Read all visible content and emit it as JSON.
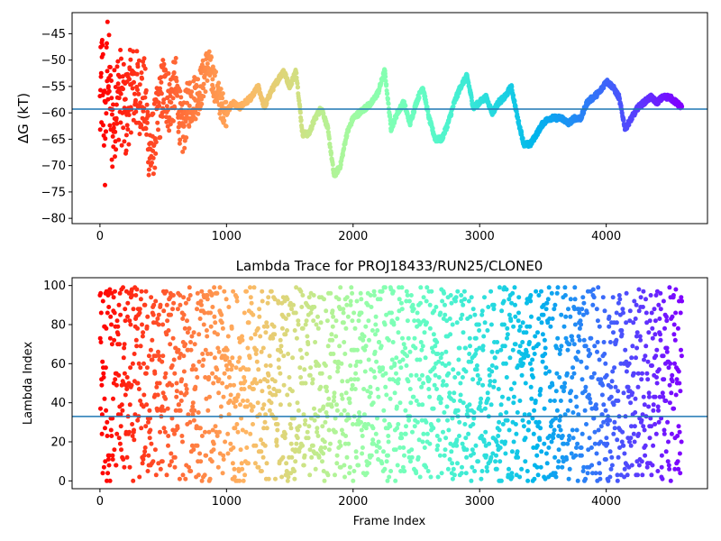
{
  "chart_data": [
    {
      "type": "scatter",
      "title": "",
      "xlabel": "",
      "ylabel": "ΔG (kT)",
      "xlim": [
        -220,
        4800
      ],
      "ylim": [
        -81,
        -41
      ],
      "xticks": [
        0,
        1000,
        2000,
        3000,
        4000
      ],
      "yticks": [
        -45,
        -50,
        -55,
        -60,
        -65,
        -70,
        -75,
        -80
      ],
      "xtick_labels": [
        "0",
        "1000",
        "2000",
        "3000",
        "4000"
      ],
      "ytick_labels": [
        "−45",
        "−50",
        "−55",
        "−60",
        "−65",
        "−70",
        "−75",
        "−80"
      ],
      "hline": -59.3,
      "colormap": "rainbow (reversed: red at frame 0 → violet at last frame)",
      "frame_count": 4600,
      "series": [
        {
          "x": [
            0,
            20,
            40,
            60,
            80,
            100,
            130,
            160,
            200,
            250,
            300,
            350,
            400,
            450,
            500,
            550,
            600,
            650,
            700,
            750,
            800,
            850,
            900,
            950,
            1000,
            1050,
            1100,
            1150,
            1200,
            1250,
            1300,
            1350,
            1400,
            1450,
            1500,
            1550,
            1600,
            1650,
            1700,
            1750,
            1800,
            1850,
            1900,
            1950,
            2000,
            2050,
            2100,
            2150,
            2200,
            2250,
            2300,
            2350,
            2400,
            2450,
            2500,
            2550,
            2600,
            2650,
            2700,
            2750,
            2800,
            2850,
            2900,
            2950,
            3000,
            3050,
            3100,
            3150,
            3200,
            3250,
            3300,
            3350,
            3400,
            3450,
            3500,
            3550,
            3600,
            3650,
            3700,
            3750,
            3800,
            3850,
            3900,
            3950,
            4000,
            4050,
            4100,
            4150,
            4200,
            4250,
            4300,
            4350,
            4400,
            4450,
            4500,
            4550,
            4600
          ],
          "y": [
            -60,
            -52,
            -66,
            -49,
            -58,
            -63,
            -57,
            -56,
            -61,
            -55,
            -56,
            -57,
            -68,
            -62,
            -55,
            -58,
            -55,
            -64,
            -58,
            -57,
            -55,
            -51,
            -54,
            -58,
            -60,
            -58,
            -59,
            -58,
            -57,
            -55,
            -59,
            -56,
            -54,
            -52,
            -55,
            -52,
            -64,
            -64,
            -61,
            -59,
            -63,
            -72,
            -70,
            -64,
            -61,
            -60,
            -59,
            -58,
            -56,
            -52,
            -63,
            -60,
            -58,
            -62,
            -58,
            -55,
            -61,
            -65,
            -65,
            -62,
            -58,
            -55,
            -53,
            -59,
            -58,
            -57,
            -60,
            -58,
            -57,
            -55,
            -61,
            -66,
            -66,
            -64,
            -62,
            -61,
            -61,
            -61,
            -62,
            -61,
            -61,
            -58,
            -57,
            -56,
            -54,
            -55,
            -57,
            -63,
            -61,
            -59,
            -58,
            -57,
            -58,
            -57,
            -57,
            -58,
            -59
          ]
        }
      ]
    },
    {
      "type": "scatter",
      "title": "Lambda Trace for PROJ18433/RUN25/CLONE0",
      "xlabel": "Frame Index",
      "ylabel": "Lambda Index",
      "xlim": [
        -220,
        4800
      ],
      "ylim": [
        -4,
        104
      ],
      "xticks": [
        0,
        1000,
        2000,
        3000,
        4000
      ],
      "yticks": [
        0,
        20,
        40,
        60,
        80,
        100
      ],
      "xtick_labels": [
        "0",
        "1000",
        "2000",
        "3000",
        "4000"
      ],
      "ytick_labels": [
        "0",
        "20",
        "40",
        "60",
        "80",
        "100"
      ],
      "hline": 33,
      "colormap": "rainbow (reversed: red at frame 0 → violet at last frame)",
      "frame_count": 4600,
      "range": [
        0,
        99
      ]
    }
  ]
}
